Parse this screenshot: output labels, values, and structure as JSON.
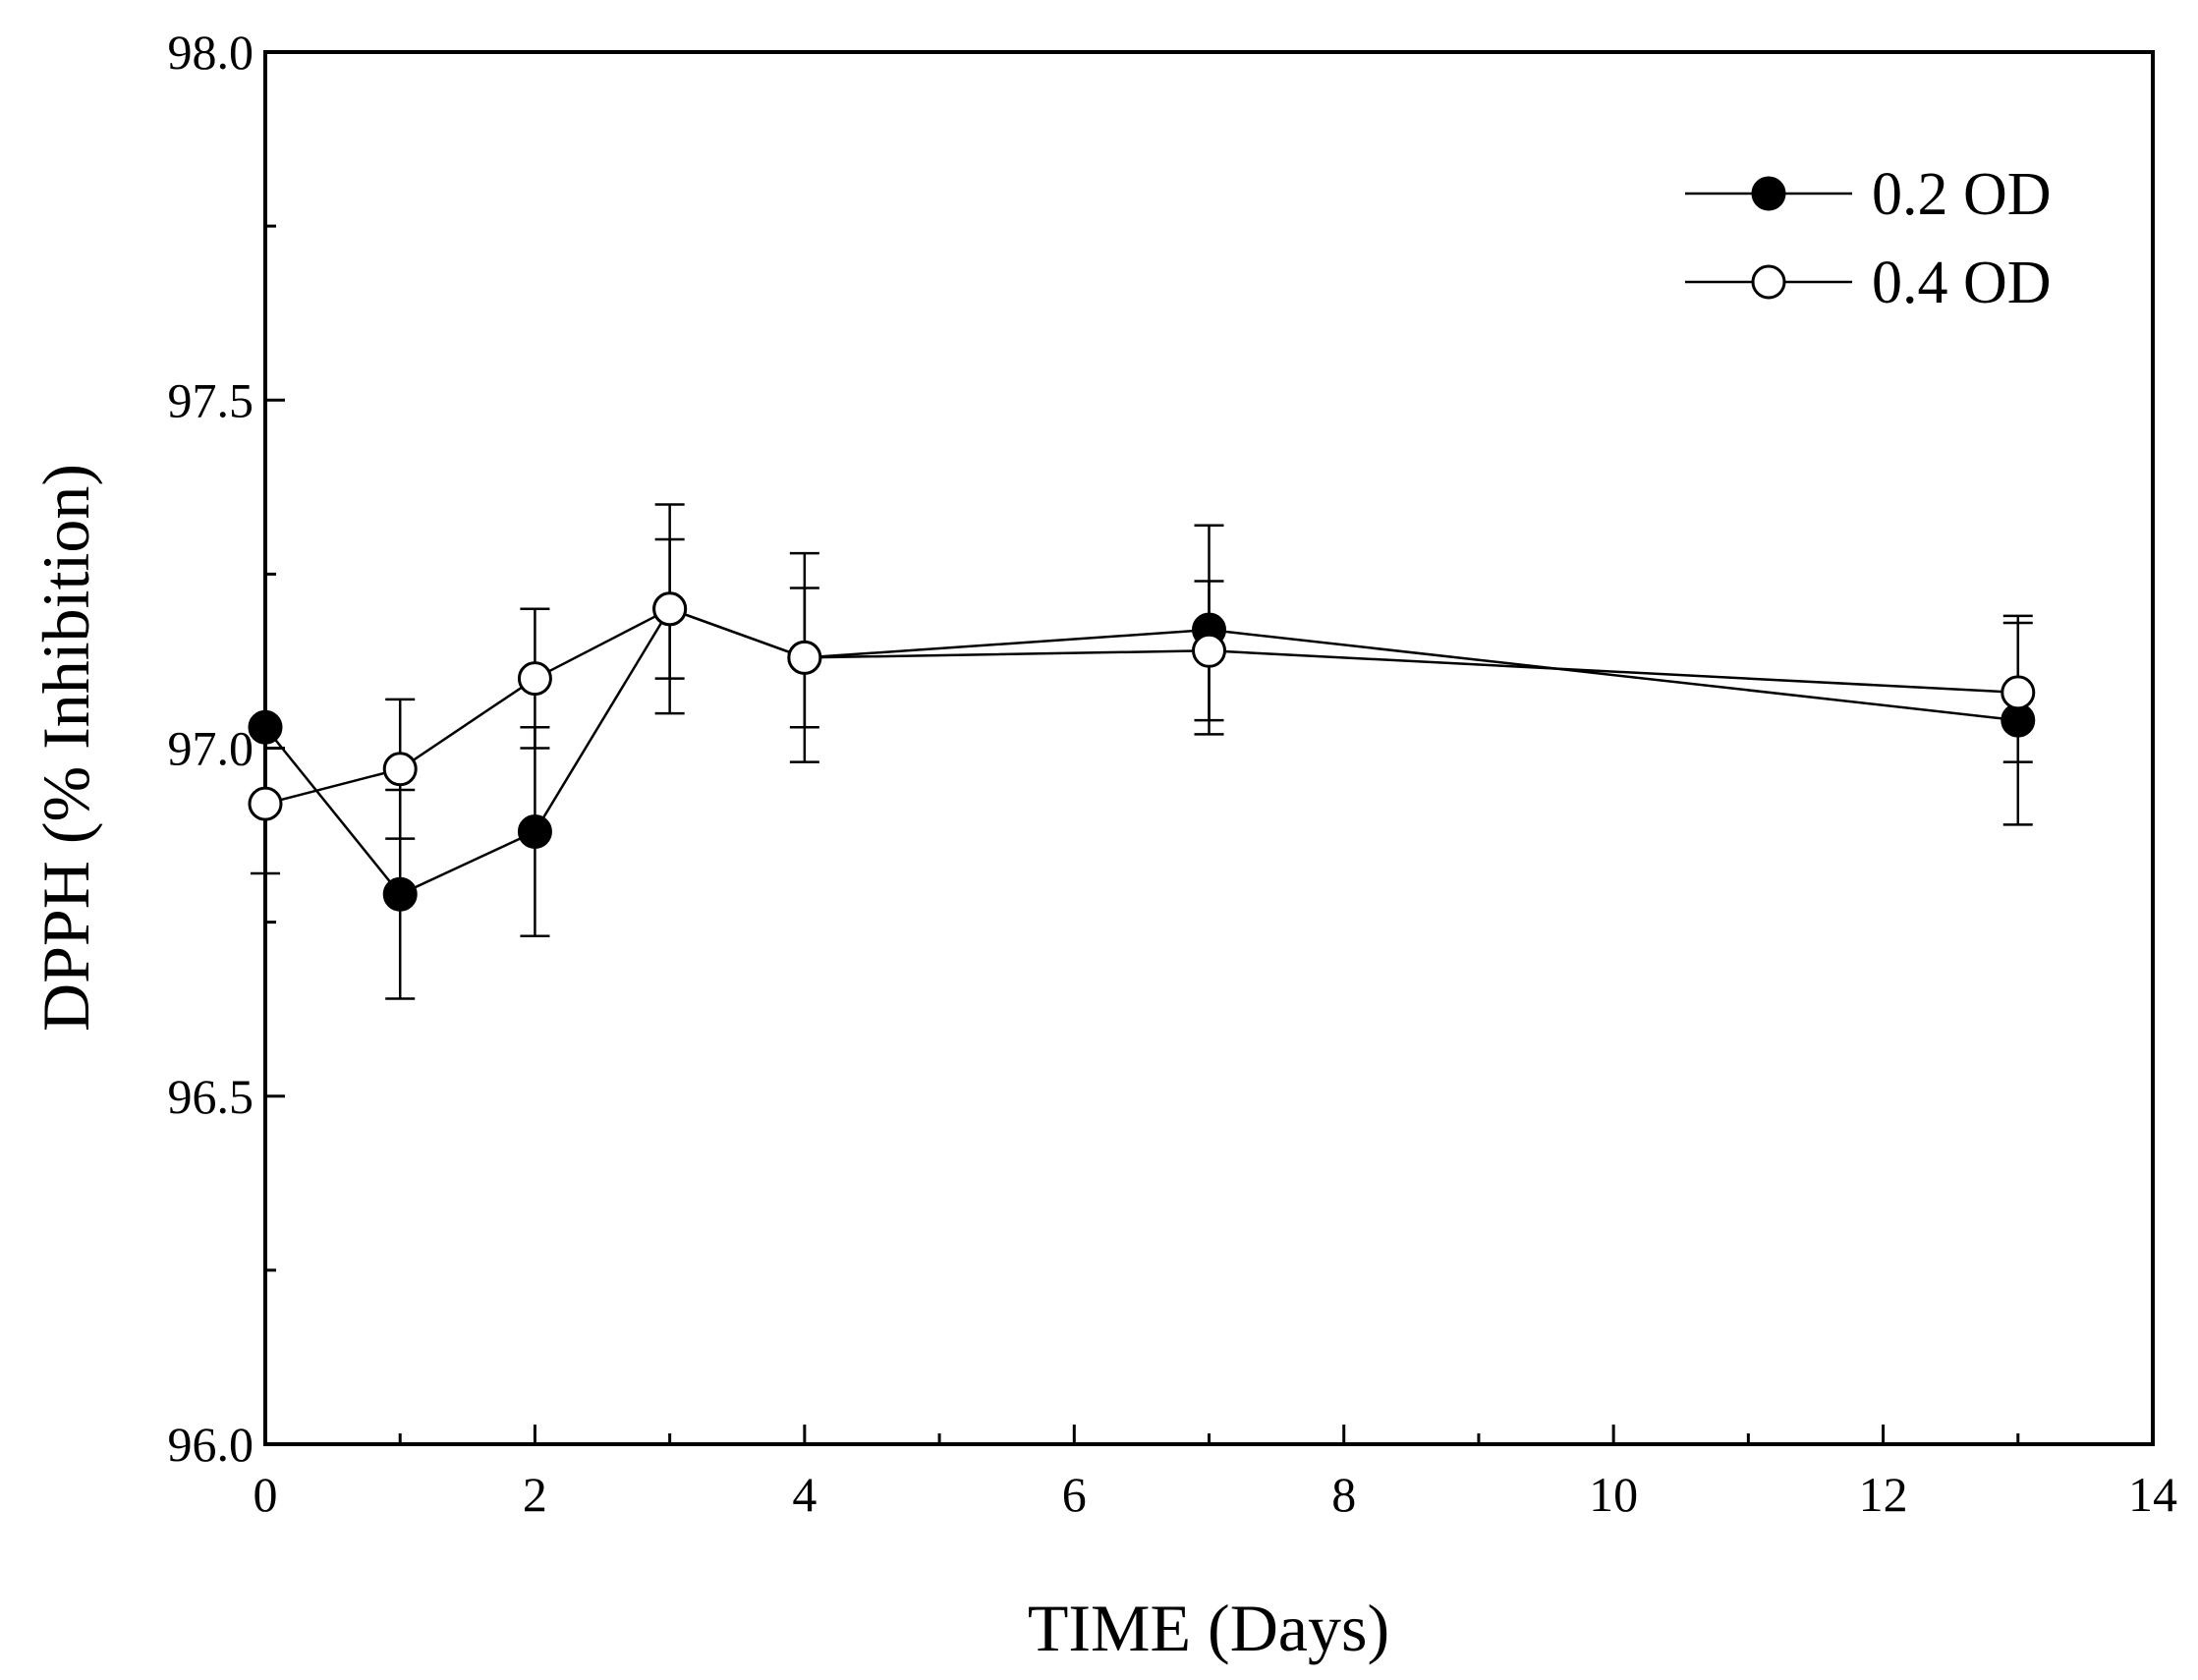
{
  "chart_data": {
    "type": "line",
    "title": "",
    "xlabel": "TIME (Days)",
    "ylabel": "DPPH (% Inhibition)",
    "xlim": [
      0,
      14
    ],
    "ylim": [
      96.0,
      98.0
    ],
    "xticks": [
      0,
      2,
      4,
      6,
      8,
      10,
      12,
      14
    ],
    "xtick_labels": [
      "0",
      "2",
      "4",
      "6",
      "8",
      "10",
      "12",
      "14"
    ],
    "x_minor_ticks": [
      1,
      3,
      5,
      7,
      9,
      11,
      13
    ],
    "yticks": [
      96.0,
      96.5,
      97.0,
      97.5,
      98.0
    ],
    "ytick_labels": [
      "96.0",
      "96.5",
      "97.0",
      "97.5",
      "98.0"
    ],
    "y_minor_ticks": [
      96.25,
      96.75,
      97.25,
      97.75
    ],
    "grid": false,
    "legend_position": "top-right",
    "series": [
      {
        "name": "0.2 OD",
        "marker": "filled-circle",
        "color": "#000000",
        "x": [
          0,
          1,
          2,
          3,
          4,
          7,
          13
        ],
        "values": [
          97.03,
          96.79,
          96.88,
          97.2,
          97.13,
          97.17,
          97.04
        ],
        "errors": [
          0.0,
          0.15,
          0.15,
          0.1,
          0.1,
          0.15,
          0.15
        ]
      },
      {
        "name": "0.4 OD",
        "marker": "open-circle",
        "color": "#000000",
        "x": [
          0,
          1,
          2,
          3,
          4,
          7,
          13
        ],
        "values": [
          96.92,
          96.97,
          97.1,
          97.2,
          97.13,
          97.14,
          97.08
        ],
        "errors": [
          0.1,
          0.1,
          0.1,
          0.15,
          0.15,
          0.1,
          0.1
        ]
      }
    ]
  }
}
